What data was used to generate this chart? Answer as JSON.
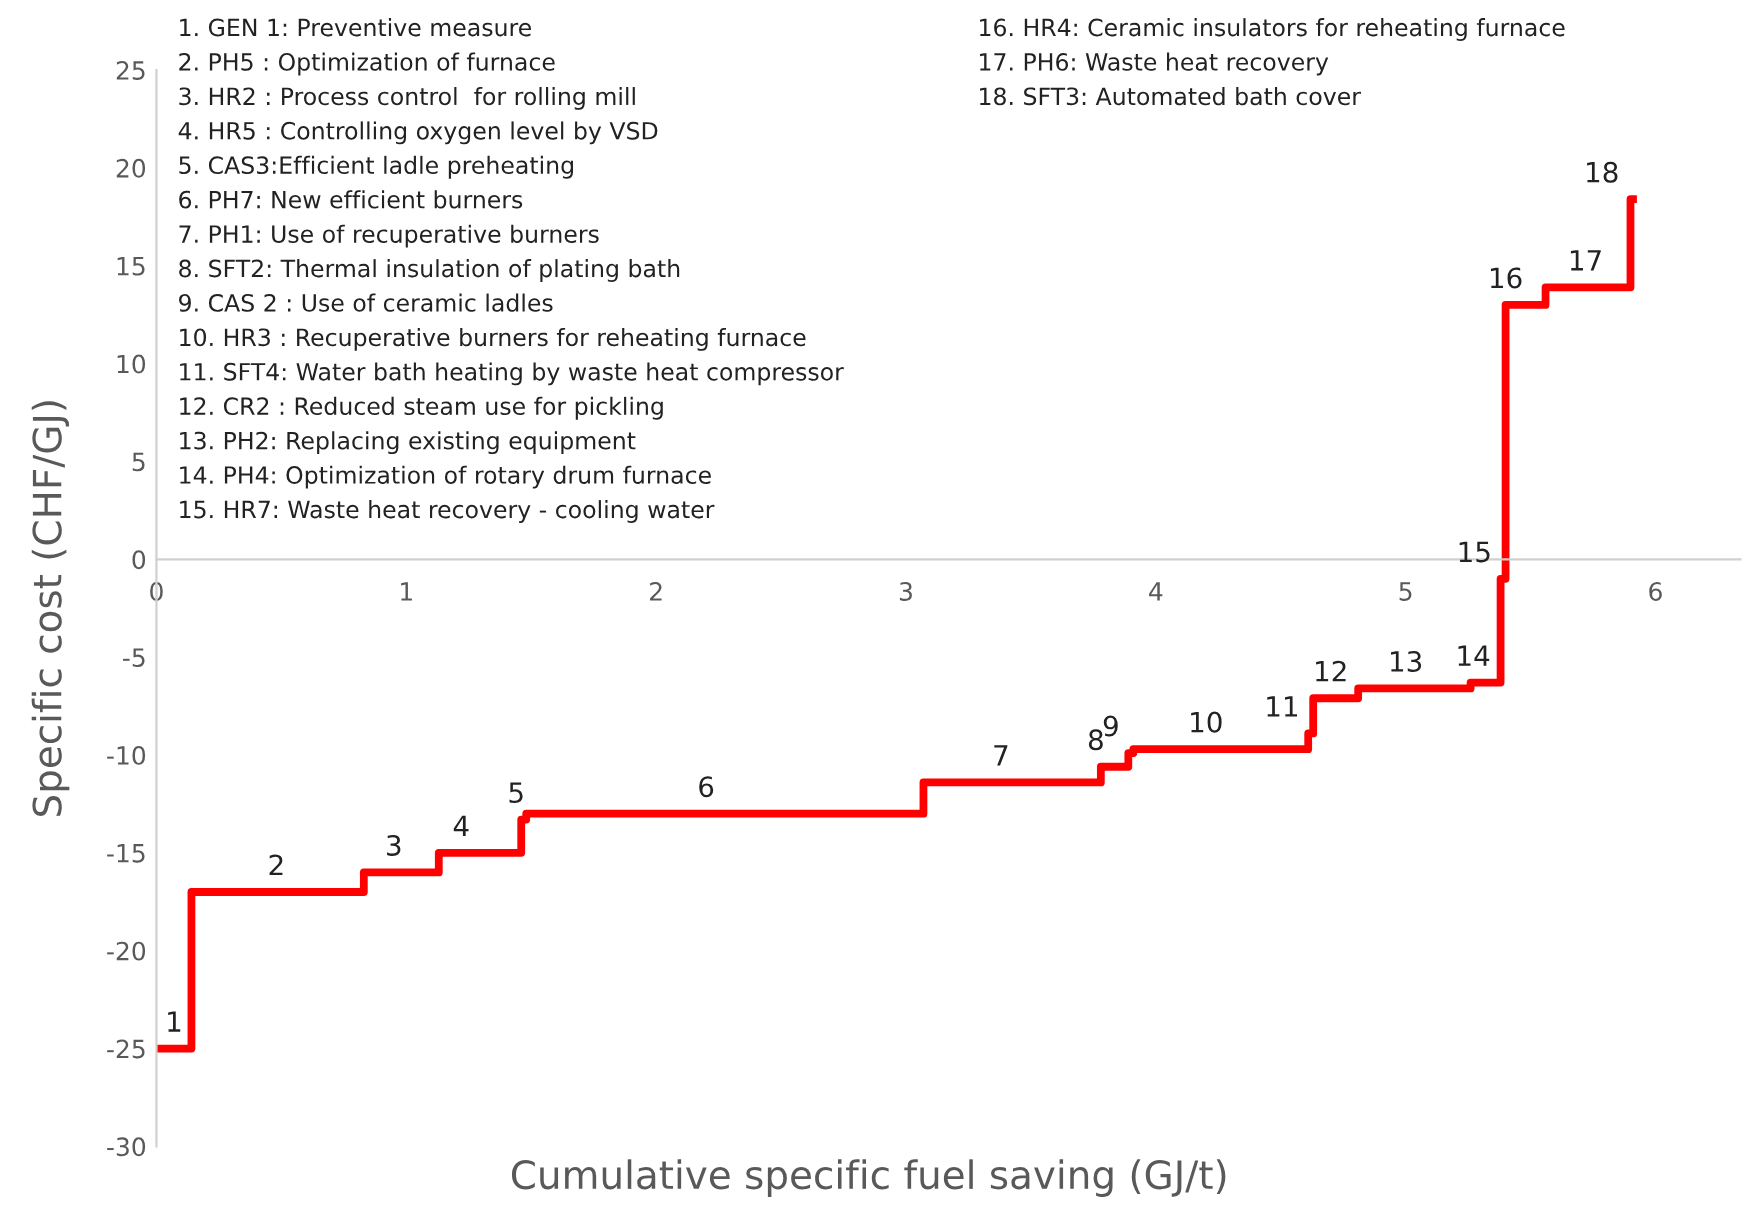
{
  "chart_data": {
    "type": "step",
    "xlabel": "Cumulative specific fuel saving (GJ/t)",
    "ylabel": "Specific cost (CHF/GJ)",
    "xlim": [
      0,
      6.34
    ],
    "ylim": [
      -30,
      25
    ],
    "xticks": [
      0,
      1,
      2,
      3,
      4,
      5,
      6
    ],
    "yticks": [
      -30,
      -25,
      -20,
      -15,
      -10,
      -5,
      0,
      5,
      10,
      15,
      20,
      25
    ],
    "grid": false,
    "legend": false,
    "marker": "none",
    "line_style": "solid",
    "series": [
      {
        "color": "#ff0000",
        "x": [
          0,
          0.14,
          0.83,
          1.13,
          1.46,
          1.48,
          3.07,
          3.78,
          3.89,
          3.91,
          4.61,
          4.63,
          4.81,
          5.26,
          5.38,
          5.4,
          5.56,
          5.9,
          5.91
        ],
        "values": [
          -25,
          -17,
          -16,
          -15,
          -13.3,
          -13,
          -11.4,
          -10.6,
          -9.9,
          -9.7,
          -8.9,
          -7.1,
          -6.6,
          -6.3,
          -1,
          13,
          13.9,
          18.4,
          18.4
        ]
      }
    ],
    "annotations": [
      {
        "text": "1",
        "x": 0.07,
        "y": -25
      },
      {
        "text": "2",
        "x": 0.48,
        "y": -17
      },
      {
        "text": "3",
        "x": 0.95,
        "y": -16
      },
      {
        "text": "4",
        "x": 1.22,
        "y": -15
      },
      {
        "text": "5",
        "x": 1.44,
        "y": -13.3
      },
      {
        "text": "6",
        "x": 2.2,
        "y": -13
      },
      {
        "text": "7",
        "x": 3.38,
        "y": -11.4
      },
      {
        "text": "8",
        "x": 3.84,
        "y": -10.6
      },
      {
        "text": "9",
        "x": 3.9,
        "y": -9.9
      },
      {
        "text": "10",
        "x": 4.2,
        "y": -9.7
      },
      {
        "text": "11",
        "x": 4.62,
        "y": -8.9
      },
      {
        "text": "12",
        "x": 4.7,
        "y": -7.1
      },
      {
        "text": "13",
        "x": 5.0,
        "y": -6.6
      },
      {
        "text": "14",
        "x": 5.27,
        "y": -6.3
      },
      {
        "text": "15",
        "x": 5.39,
        "y": -1
      },
      {
        "text": "16",
        "x": 5.4,
        "y": 13
      },
      {
        "text": "17",
        "x": 5.72,
        "y": 13.9
      },
      {
        "text": "18",
        "x": 5.9,
        "y": 18.4
      },
      "1. GEN 1: Preventive measure",
      "2. PH5 : Optimization of furnace",
      "3. HR2 : Process control  for rolling mill",
      "4. HR5 : Controlling oxygen level by VSD",
      "5. CAS3:Efficient ladle preheating",
      "6. PH7: New efficient burners",
      "7. PH1: Use of recuperative burners",
      "8. SFT2: Thermal insulation of plating bath",
      "9. CAS 2 : Use of ceramic ladles",
      "10. HR3 : Recuperative burners for reheating furnace",
      "11. SFT4: Water bath heating by waste heat compressor",
      "12. CR2 : Reduced steam use for pickling",
      "13. PH2: Replacing existing equipment",
      "14. PH4: Optimization of rotary drum furnace",
      "15. HR7: Waste heat recovery - cooling water",
      "16. HR4: Ceramic insulators for reheating furnace",
      "17. PH6: Waste heat recovery",
      "18. SFT3: Automated bath cover"
    ]
  }
}
